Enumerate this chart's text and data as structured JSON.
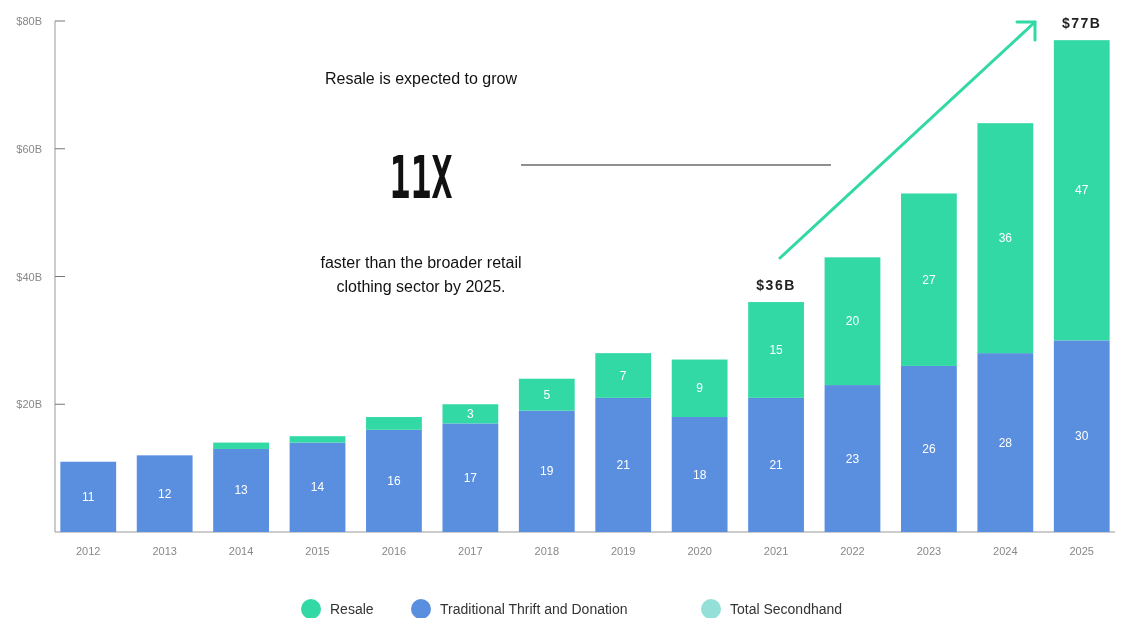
{
  "chart_data": {
    "type": "bar",
    "stacked": true,
    "categories": [
      "2012",
      "2013",
      "2014",
      "2015",
      "2016",
      "2017",
      "2018",
      "2019",
      "2020",
      "2021",
      "2022",
      "2023",
      "2024",
      "2025"
    ],
    "series": [
      {
        "name": "Traditional Thrift and Donation",
        "color": "#5a8fdf",
        "values": [
          11,
          12,
          13,
          14,
          16,
          17,
          19,
          21,
          18,
          21,
          23,
          26,
          28,
          30
        ],
        "value_labels": [
          "11",
          "12",
          "13",
          "14",
          "16",
          "17",
          "19",
          "21",
          "18",
          "21",
          "23",
          "26",
          "28",
          "30"
        ]
      },
      {
        "name": "Resale",
        "color": "#33d9a5",
        "values": [
          null,
          null,
          1,
          1,
          2,
          3,
          5,
          7,
          9,
          15,
          20,
          27,
          36,
          47
        ],
        "value_labels": [
          null,
          null,
          null,
          null,
          null,
          "3",
          "5",
          "7",
          "9",
          "15",
          "20",
          "27",
          "36",
          "47"
        ]
      },
      {
        "name": "Total Secondhand",
        "color": "#94dfd8",
        "values": [
          null,
          null,
          null,
          null,
          null,
          null,
          null,
          null,
          null,
          null,
          null,
          null,
          null,
          null
        ]
      }
    ],
    "totals": [
      null,
      null,
      null,
      null,
      null,
      null,
      null,
      null,
      null,
      "$36B",
      null,
      null,
      null,
      "$77B"
    ],
    "ylim": [
      0,
      80
    ],
    "yticks": [
      {
        "value": 20,
        "label": "$20B"
      },
      {
        "value": 40,
        "label": "$40B"
      },
      {
        "value": 60,
        "label": "$60B"
      },
      {
        "value": 80,
        "label": "$80B"
      }
    ],
    "grid": false,
    "legend": "bottom",
    "annotations": [
      "Resale is expected to grow",
      "11X",
      "faster than the broader retail\nclothing sector by 2025."
    ]
  }
}
